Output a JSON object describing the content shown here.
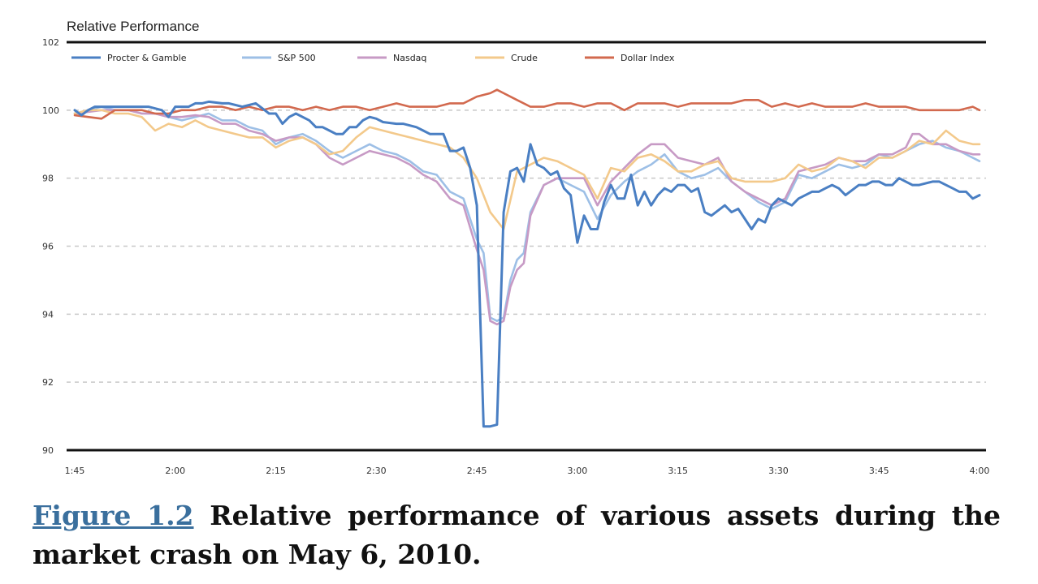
{
  "chart_data": {
    "type": "line",
    "ylabel": "Relative Performance",
    "ylim": [
      90,
      102
    ],
    "yticks": [
      "90",
      "92",
      "94",
      "96",
      "98",
      "100",
      "102"
    ],
    "xticks": [
      "1:45",
      "2:00",
      "2:15",
      "2:30",
      "2:45",
      "3:00",
      "3:15",
      "3:30",
      "3:45",
      "4:00"
    ],
    "legend_position": "top",
    "grid": "horizontal dashed",
    "series": [
      {
        "name": "Procter & Gamble",
        "color": "#4a7fc3",
        "x": [
          "1:45",
          "1:46",
          "1:47",
          "1:48",
          "1:50",
          "1:52",
          "1:54",
          "1:56",
          "1:58",
          "1:59",
          "2:00",
          "2:02",
          "2:03",
          "2:04",
          "2:05",
          "2:07",
          "2:08",
          "2:10",
          "2:12",
          "2:13",
          "2:14",
          "2:15",
          "2:16",
          "2:17",
          "2:18",
          "2:20",
          "2:21",
          "2:22",
          "2:23",
          "2:24",
          "2:25",
          "2:26",
          "2:27",
          "2:28",
          "2:29",
          "2:30",
          "2:31",
          "2:33",
          "2:34",
          "2:35",
          "2:36",
          "2:37",
          "2:38",
          "2:39",
          "2:40",
          "2:41",
          "2:42",
          "2:43",
          "2:44",
          "2:45",
          "2:46",
          "2:47",
          "2:48",
          "2:49",
          "2:50",
          "2:51",
          "2:52",
          "2:53",
          "2:54",
          "2:55",
          "2:56",
          "2:57",
          "2:58",
          "2:59",
          "3:00",
          "3:01",
          "3:02",
          "3:03",
          "3:04",
          "3:05",
          "3:06",
          "3:07",
          "3:08",
          "3:09",
          "3:10",
          "3:11",
          "3:12",
          "3:13",
          "3:14",
          "3:15",
          "3:16",
          "3:17",
          "3:18",
          "3:19",
          "3:20",
          "3:22",
          "3:23",
          "3:24",
          "3:25",
          "3:26",
          "3:27",
          "3:28",
          "3:29",
          "3:30",
          "3:31",
          "3:32",
          "3:33",
          "3:35",
          "3:36",
          "3:37",
          "3:38",
          "3:39",
          "3:40",
          "3:42",
          "3:43",
          "3:44",
          "3:45",
          "3:46",
          "3:47",
          "3:48",
          "3:49",
          "3:50",
          "3:51",
          "3:53",
          "3:54",
          "3:55",
          "3:56",
          "3:57",
          "3:58",
          "3:59",
          "4:00"
        ],
        "values": [
          100.0,
          99.85,
          100.0,
          100.1,
          100.1,
          100.1,
          100.1,
          100.1,
          100.0,
          99.8,
          100.1,
          100.1,
          100.2,
          100.2,
          100.25,
          100.2,
          100.2,
          100.1,
          100.2,
          100.05,
          99.9,
          99.9,
          99.6,
          99.8,
          99.9,
          99.7,
          99.5,
          99.5,
          99.4,
          99.3,
          99.3,
          99.5,
          99.5,
          99.7,
          99.8,
          99.75,
          99.65,
          99.6,
          99.6,
          99.55,
          99.5,
          99.4,
          99.3,
          99.3,
          99.3,
          98.8,
          98.8,
          98.9,
          98.3,
          97.2,
          90.7,
          90.7,
          90.75,
          97.0,
          98.2,
          98.3,
          97.9,
          99.0,
          98.4,
          98.3,
          98.1,
          98.2,
          97.7,
          97.5,
          96.1,
          96.9,
          96.5,
          96.5,
          97.3,
          97.8,
          97.4,
          97.4,
          98.1,
          97.2,
          97.6,
          97.2,
          97.5,
          97.7,
          97.6,
          97.8,
          97.8,
          97.6,
          97.7,
          97.0,
          96.9,
          97.2,
          97.0,
          97.1,
          96.8,
          96.5,
          96.8,
          96.7,
          97.2,
          97.4,
          97.3,
          97.2,
          97.4,
          97.6,
          97.6,
          97.7,
          97.8,
          97.7,
          97.5,
          97.8,
          97.8,
          97.9,
          97.9,
          97.8,
          97.8,
          98.0,
          97.9,
          97.8,
          97.8,
          97.9,
          97.9,
          97.8,
          97.7,
          97.6,
          97.6,
          97.4,
          97.5
        ]
      },
      {
        "name": "S&P 500",
        "color": "#9dbfe6",
        "x": [
          "1:45",
          "1:47",
          "1:49",
          "1:51",
          "1:53",
          "1:55",
          "1:57",
          "1:59",
          "2:01",
          "2:03",
          "2:05",
          "2:07",
          "2:09",
          "2:11",
          "2:13",
          "2:15",
          "2:17",
          "2:19",
          "2:21",
          "2:23",
          "2:25",
          "2:27",
          "2:29",
          "2:31",
          "2:33",
          "2:35",
          "2:37",
          "2:39",
          "2:41",
          "2:43",
          "2:45",
          "2:46",
          "2:47",
          "2:48",
          "2:49",
          "2:50",
          "2:51",
          "2:52",
          "2:53",
          "2:55",
          "2:57",
          "2:59",
          "3:01",
          "3:03",
          "3:05",
          "3:07",
          "3:09",
          "3:11",
          "3:13",
          "3:15",
          "3:17",
          "3:19",
          "3:21",
          "3:23",
          "3:25",
          "3:27",
          "3:29",
          "3:31",
          "3:33",
          "3:35",
          "3:37",
          "3:39",
          "3:41",
          "3:43",
          "3:45",
          "3:47",
          "3:49",
          "3:51",
          "3:53",
          "3:55",
          "3:57",
          "3:59",
          "4:00"
        ],
        "values": [
          99.9,
          100.0,
          100.1,
          100.0,
          100.0,
          99.9,
          99.9,
          99.8,
          99.7,
          99.8,
          99.9,
          99.7,
          99.7,
          99.5,
          99.4,
          99.0,
          99.2,
          99.3,
          99.1,
          98.8,
          98.6,
          98.8,
          99.0,
          98.8,
          98.7,
          98.5,
          98.2,
          98.1,
          97.6,
          97.4,
          96.2,
          95.8,
          93.9,
          93.8,
          93.9,
          95.0,
          95.6,
          95.8,
          97.0,
          97.8,
          98.0,
          97.8,
          97.6,
          96.8,
          97.5,
          97.9,
          98.2,
          98.4,
          98.7,
          98.2,
          98.0,
          98.1,
          98.3,
          97.9,
          97.6,
          97.3,
          97.1,
          97.3,
          98.1,
          98.0,
          98.2,
          98.4,
          98.3,
          98.4,
          98.7,
          98.6,
          98.8,
          99.0,
          99.1,
          98.9,
          98.8,
          98.6,
          98.5
        ]
      },
      {
        "name": "Nasdaq",
        "color": "#c79ac5",
        "x": [
          "1:45",
          "1:47",
          "1:49",
          "1:51",
          "1:53",
          "1:55",
          "1:57",
          "1:59",
          "2:01",
          "2:03",
          "2:05",
          "2:07",
          "2:09",
          "2:11",
          "2:13",
          "2:15",
          "2:17",
          "2:19",
          "2:21",
          "2:23",
          "2:25",
          "2:27",
          "2:29",
          "2:31",
          "2:33",
          "2:35",
          "2:37",
          "2:39",
          "2:41",
          "2:43",
          "2:45",
          "2:46",
          "2:47",
          "2:48",
          "2:49",
          "2:50",
          "2:51",
          "2:52",
          "2:53",
          "2:55",
          "2:57",
          "2:59",
          "3:01",
          "3:03",
          "3:05",
          "3:07",
          "3:09",
          "3:11",
          "3:13",
          "3:15",
          "3:17",
          "3:19",
          "3:21",
          "3:23",
          "3:25",
          "3:27",
          "3:29",
          "3:31",
          "3:33",
          "3:35",
          "3:37",
          "3:39",
          "3:41",
          "3:43",
          "3:45",
          "3:47",
          "3:49",
          "3:50",
          "3:51",
          "3:53",
          "3:55",
          "3:57",
          "3:59",
          "4:00"
        ],
        "values": [
          99.9,
          99.95,
          100.0,
          100.0,
          100.0,
          99.9,
          99.9,
          99.8,
          99.8,
          99.85,
          99.8,
          99.6,
          99.6,
          99.4,
          99.3,
          99.1,
          99.2,
          99.2,
          99.0,
          98.6,
          98.4,
          98.6,
          98.8,
          98.7,
          98.6,
          98.4,
          98.1,
          97.9,
          97.4,
          97.2,
          95.9,
          95.3,
          93.8,
          93.7,
          93.8,
          94.8,
          95.3,
          95.5,
          96.9,
          97.8,
          98.0,
          98.0,
          98.0,
          97.2,
          97.9,
          98.3,
          98.7,
          99.0,
          99.0,
          98.6,
          98.5,
          98.4,
          98.6,
          97.9,
          97.6,
          97.4,
          97.2,
          97.4,
          98.2,
          98.3,
          98.4,
          98.6,
          98.5,
          98.5,
          98.7,
          98.7,
          98.9,
          99.3,
          99.3,
          99.0,
          99.0,
          98.8,
          98.7,
          98.7
        ]
      },
      {
        "name": "Crude",
        "color": "#f3c98b",
        "x": [
          "1:45",
          "1:47",
          "1:49",
          "1:51",
          "1:53",
          "1:55",
          "1:57",
          "1:59",
          "2:01",
          "2:03",
          "2:05",
          "2:07",
          "2:09",
          "2:11",
          "2:13",
          "2:15",
          "2:17",
          "2:19",
          "2:21",
          "2:23",
          "2:25",
          "2:27",
          "2:29",
          "2:31",
          "2:33",
          "2:35",
          "2:37",
          "2:39",
          "2:41",
          "2:43",
          "2:45",
          "2:47",
          "2:49",
          "2:51",
          "2:53",
          "2:55",
          "2:57",
          "2:59",
          "3:01",
          "3:03",
          "3:05",
          "3:07",
          "3:09",
          "3:11",
          "3:13",
          "3:15",
          "3:17",
          "3:19",
          "3:21",
          "3:23",
          "3:25",
          "3:27",
          "3:29",
          "3:31",
          "3:33",
          "3:35",
          "3:37",
          "3:39",
          "3:41",
          "3:43",
          "3:45",
          "3:47",
          "3:49",
          "3:51",
          "3:53",
          "3:55",
          "3:57",
          "3:59",
          "4:00"
        ],
        "values": [
          99.9,
          100.0,
          100.0,
          99.9,
          99.9,
          99.8,
          99.4,
          99.6,
          99.5,
          99.7,
          99.5,
          99.4,
          99.3,
          99.2,
          99.2,
          98.9,
          99.1,
          99.2,
          99.0,
          98.7,
          98.8,
          99.2,
          99.5,
          99.4,
          99.3,
          99.2,
          99.1,
          99.0,
          98.9,
          98.6,
          98.0,
          97.0,
          96.5,
          98.2,
          98.4,
          98.6,
          98.5,
          98.3,
          98.1,
          97.4,
          98.3,
          98.2,
          98.6,
          98.7,
          98.5,
          98.2,
          98.2,
          98.4,
          98.5,
          98.0,
          97.9,
          97.9,
          97.9,
          98.0,
          98.4,
          98.2,
          98.3,
          98.6,
          98.5,
          98.3,
          98.6,
          98.6,
          98.8,
          99.1,
          99.0,
          99.4,
          99.1,
          99.0,
          99.0
        ]
      },
      {
        "name": "Dollar Index",
        "color": "#d2694e",
        "x": [
          "1:45",
          "1:47",
          "1:49",
          "1:51",
          "1:53",
          "1:55",
          "1:57",
          "1:59",
          "2:01",
          "2:03",
          "2:05",
          "2:07",
          "2:09",
          "2:11",
          "2:13",
          "2:15",
          "2:17",
          "2:19",
          "2:21",
          "2:23",
          "2:25",
          "2:27",
          "2:29",
          "2:31",
          "2:33",
          "2:35",
          "2:37",
          "2:39",
          "2:41",
          "2:43",
          "2:45",
          "2:47",
          "2:48",
          "2:49",
          "2:51",
          "2:53",
          "2:55",
          "2:57",
          "2:59",
          "3:01",
          "3:03",
          "3:05",
          "3:07",
          "3:09",
          "3:11",
          "3:13",
          "3:15",
          "3:17",
          "3:19",
          "3:21",
          "3:23",
          "3:25",
          "3:27",
          "3:29",
          "3:31",
          "3:33",
          "3:35",
          "3:37",
          "3:39",
          "3:41",
          "3:43",
          "3:45",
          "3:47",
          "3:49",
          "3:51",
          "3:53",
          "3:55",
          "3:57",
          "3:59",
          "4:00"
        ],
        "values": [
          99.85,
          99.8,
          99.75,
          100.0,
          100.0,
          100.0,
          99.9,
          99.9,
          100.0,
          100.0,
          100.1,
          100.1,
          100.0,
          100.1,
          100.0,
          100.1,
          100.1,
          100.0,
          100.1,
          100.0,
          100.1,
          100.1,
          100.0,
          100.1,
          100.2,
          100.1,
          100.1,
          100.1,
          100.2,
          100.2,
          100.4,
          100.5,
          100.6,
          100.5,
          100.3,
          100.1,
          100.1,
          100.2,
          100.2,
          100.1,
          100.2,
          100.2,
          100.0,
          100.2,
          100.2,
          100.2,
          100.1,
          100.2,
          100.2,
          100.2,
          100.2,
          100.3,
          100.3,
          100.1,
          100.2,
          100.1,
          100.2,
          100.1,
          100.1,
          100.1,
          100.2,
          100.1,
          100.1,
          100.1,
          100.0,
          100.0,
          100.0,
          100.0,
          100.1,
          100.0
        ]
      }
    ]
  },
  "caption": {
    "figure_ref": "Figure 1.2",
    "text": " Relative performance of various assets during the market crash on May 6, 2010."
  }
}
